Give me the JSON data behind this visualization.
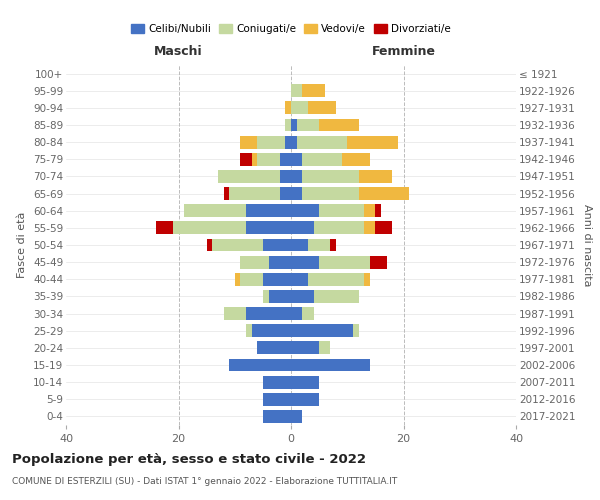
{
  "age_groups": [
    "0-4",
    "5-9",
    "10-14",
    "15-19",
    "20-24",
    "25-29",
    "30-34",
    "35-39",
    "40-44",
    "45-49",
    "50-54",
    "55-59",
    "60-64",
    "65-69",
    "70-74",
    "75-79",
    "80-84",
    "85-89",
    "90-94",
    "95-99",
    "100+"
  ],
  "birth_years": [
    "2017-2021",
    "2012-2016",
    "2007-2011",
    "2002-2006",
    "1997-2001",
    "1992-1996",
    "1987-1991",
    "1982-1986",
    "1977-1981",
    "1972-1976",
    "1967-1971",
    "1962-1966",
    "1957-1961",
    "1952-1956",
    "1947-1951",
    "1942-1946",
    "1937-1941",
    "1932-1936",
    "1927-1931",
    "1922-1926",
    "≤ 1921"
  ],
  "males": {
    "celibi": [
      5,
      5,
      5,
      11,
      6,
      7,
      8,
      4,
      5,
      4,
      5,
      8,
      8,
      2,
      2,
      2,
      1,
      0,
      0,
      0,
      0
    ],
    "coniugati": [
      0,
      0,
      0,
      0,
      0,
      1,
      4,
      1,
      4,
      5,
      9,
      13,
      11,
      9,
      11,
      4,
      5,
      1,
      0,
      0,
      0
    ],
    "vedovi": [
      0,
      0,
      0,
      0,
      0,
      0,
      0,
      0,
      1,
      0,
      0,
      0,
      0,
      0,
      0,
      1,
      3,
      0,
      1,
      0,
      0
    ],
    "divorziati": [
      0,
      0,
      0,
      0,
      0,
      0,
      0,
      0,
      0,
      0,
      1,
      3,
      0,
      1,
      0,
      2,
      0,
      0,
      0,
      0,
      0
    ]
  },
  "females": {
    "nubili": [
      2,
      5,
      5,
      14,
      5,
      11,
      2,
      4,
      3,
      5,
      3,
      4,
      5,
      2,
      2,
      2,
      1,
      1,
      0,
      0,
      0
    ],
    "coniugate": [
      0,
      0,
      0,
      0,
      2,
      1,
      2,
      8,
      10,
      9,
      4,
      9,
      8,
      10,
      10,
      7,
      9,
      4,
      3,
      2,
      0
    ],
    "vedove": [
      0,
      0,
      0,
      0,
      0,
      0,
      0,
      0,
      1,
      0,
      0,
      2,
      2,
      9,
      6,
      5,
      9,
      7,
      5,
      4,
      0
    ],
    "divorziate": [
      0,
      0,
      0,
      0,
      0,
      0,
      0,
      0,
      0,
      3,
      1,
      3,
      1,
      0,
      0,
      0,
      0,
      0,
      0,
      0,
      0
    ]
  },
  "colors": {
    "celibi_nubili": "#4472c4",
    "coniugati": "#c5d9a0",
    "vedovi": "#f0b840",
    "divorziati": "#c00000"
  },
  "xlim": 40,
  "title": "Popolazione per età, sesso e stato civile - 2022",
  "subtitle": "COMUNE DI ESTERZILI (SU) - Dati ISTAT 1° gennaio 2022 - Elaborazione TUTTITALIA.IT",
  "ylabel_left": "Fasce di età",
  "ylabel_right": "Anni di nascita",
  "xlabel_left": "Maschi",
  "xlabel_right": "Femmine",
  "legend_labels": [
    "Celibi/Nubili",
    "Coniugati/e",
    "Vedovi/e",
    "Divorziati/e"
  ],
  "background_color": "#ffffff",
  "grid_color": "#cccccc"
}
